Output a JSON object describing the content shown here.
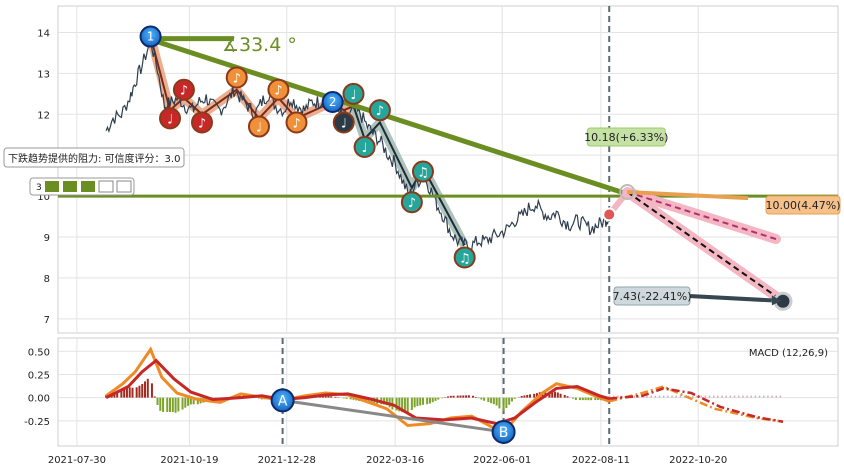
{
  "chart_data": [
    {
      "type": "line",
      "panel": "price",
      "y_ticks": [
        14,
        13,
        12,
        11,
        10,
        9,
        8,
        7
      ],
      "ylim": [
        6.8,
        14.5
      ],
      "grid": true,
      "key_points": [
        {
          "label": "1",
          "date": "2021-09-21",
          "value": 13.9
        },
        {
          "label": "2",
          "date": "2022-01-30",
          "value": 12.3
        }
      ],
      "series": [
        {
          "name": "price",
          "points": [
            [
              "2021-08-20",
              11.6
            ],
            [
              "2021-08-25",
              11.9
            ],
            [
              "2021-08-31",
              12.0
            ],
            [
              "2021-09-06",
              12.4
            ],
            [
              "2021-09-10",
              12.8
            ],
            [
              "2021-09-15",
              13.2
            ],
            [
              "2021-09-21",
              13.8
            ],
            [
              "2021-09-26",
              13.1
            ],
            [
              "2021-10-01",
              12.2
            ],
            [
              "2021-10-06",
              12.3
            ],
            [
              "2021-10-11",
              12.4
            ],
            [
              "2021-10-16",
              12.2
            ],
            [
              "2021-10-21",
              12.1
            ],
            [
              "2021-10-26",
              12.3
            ],
            [
              "2021-10-31",
              12.4
            ],
            [
              "2021-11-05",
              12.2
            ],
            [
              "2021-11-10",
              12.1
            ],
            [
              "2021-11-15",
              12.3
            ],
            [
              "2021-11-20",
              12.6
            ],
            [
              "2021-11-25",
              12.4
            ],
            [
              "2021-11-30",
              12.2
            ],
            [
              "2021-12-05",
              12.0
            ],
            [
              "2021-12-10",
              12.3
            ],
            [
              "2021-12-15",
              12.5
            ],
            [
              "2021-12-20",
              12.2
            ],
            [
              "2021-12-26",
              12.1
            ],
            [
              "2021-12-31",
              12.4
            ],
            [
              "2022-01-05",
              12.2
            ],
            [
              "2022-01-10",
              12.1
            ],
            [
              "2022-01-15",
              12.3
            ],
            [
              "2022-01-20",
              12.3
            ],
            [
              "2022-01-25",
              12.4
            ],
            [
              "2022-01-30",
              12.3
            ],
            [
              "2022-02-04",
              12.0
            ],
            [
              "2022-02-09",
              11.9
            ],
            [
              "2022-02-14",
              12.1
            ],
            [
              "2022-02-19",
              12.0
            ],
            [
              "2022-02-24",
              11.7
            ],
            [
              "2022-03-01",
              11.5
            ],
            [
              "2022-03-06",
              11.3
            ],
            [
              "2022-03-11",
              11.0
            ],
            [
              "2022-03-16",
              10.8
            ],
            [
              "2022-03-21",
              10.4
            ],
            [
              "2022-03-26",
              10.0
            ],
            [
              "2022-03-31",
              10.3
            ],
            [
              "2022-04-05",
              10.5
            ],
            [
              "2022-04-10",
              10.2
            ],
            [
              "2022-04-15",
              9.8
            ],
            [
              "2022-04-20",
              9.5
            ],
            [
              "2022-04-25",
              9.1
            ],
            [
              "2022-04-30",
              8.9
            ],
            [
              "2022-05-05",
              8.8
            ],
            [
              "2022-05-10",
              8.8
            ],
            [
              "2022-05-15",
              8.9
            ],
            [
              "2022-05-20",
              8.9
            ],
            [
              "2022-05-25",
              9.0
            ],
            [
              "2022-05-31",
              9.1
            ],
            [
              "2022-06-05",
              9.2
            ],
            [
              "2022-06-10",
              9.4
            ],
            [
              "2022-06-15",
              9.5
            ],
            [
              "2022-06-20",
              9.7
            ],
            [
              "2022-06-25",
              9.8
            ],
            [
              "2022-06-30",
              9.6
            ],
            [
              "2022-07-05",
              9.5
            ],
            [
              "2022-07-10",
              9.6
            ],
            [
              "2022-07-15",
              9.4
            ],
            [
              "2022-07-20",
              9.3
            ],
            [
              "2022-07-25",
              9.4
            ],
            [
              "2022-07-30",
              9.3
            ],
            [
              "2022-08-04",
              9.2
            ],
            [
              "2022-08-09",
              9.3
            ],
            [
              "2022-08-14",
              9.4
            ],
            [
              "2022-08-17",
              9.5
            ]
          ]
        }
      ],
      "annotations": {
        "angle_label": "∡33.4 °",
        "resistance_label": "下跌趋势提供的阻力: 可信度评分：3.0",
        "score_number": "3",
        "upper_target": {
          "label": "10.18(+6.33%)",
          "date": "2022-08-30",
          "value": 10.1
        },
        "mid_target": {
          "label": "10.00(4.47%)",
          "date": "2022-10-25",
          "value": 9.95
        },
        "lower_target": {
          "label": "7.43(-22.41%)",
          "date": "2022-12-20",
          "value": 7.43
        },
        "support_level": 10.0
      }
    },
    {
      "type": "line",
      "panel": "macd",
      "legend": "MACD (12,26,9)",
      "y_ticks": [
        0.5,
        0.25,
        0.0,
        -0.25
      ],
      "ylim": [
        -0.5,
        0.6
      ],
      "x_ticks": [
        "2021-07-30",
        "2021-10-19",
        "2021-12-28",
        "2022-03-16",
        "2022-06-01",
        "2022-08-11",
        "2022-10-20"
      ],
      "markers": [
        {
          "label": "A",
          "date": "2021-12-25",
          "value": -0.03
        },
        {
          "label": "B",
          "date": "2022-06-02",
          "value": -0.37
        }
      ],
      "series": [
        {
          "name": "macd",
          "points": [
            [
              "2021-08-20",
              0.02
            ],
            [
              "2021-09-01",
              0.15
            ],
            [
              "2021-09-10",
              0.28
            ],
            [
              "2021-09-21",
              0.52
            ],
            [
              "2021-09-29",
              0.22
            ],
            [
              "2021-10-10",
              0.05
            ],
            [
              "2021-10-25",
              -0.02
            ],
            [
              "2021-11-10",
              -0.05
            ],
            [
              "2021-11-25",
              0.04
            ],
            [
              "2021-12-08",
              0.01
            ],
            [
              "2021-12-25",
              -0.03
            ],
            [
              "2022-01-10",
              0.02
            ],
            [
              "2022-01-25",
              0.05
            ],
            [
              "2022-02-10",
              0.03
            ],
            [
              "2022-02-25",
              -0.05
            ],
            [
              "2022-03-10",
              -0.12
            ],
            [
              "2022-03-25",
              -0.3
            ],
            [
              "2022-04-10",
              -0.28
            ],
            [
              "2022-04-25",
              -0.22
            ],
            [
              "2022-05-10",
              -0.2
            ],
            [
              "2022-05-25",
              -0.32
            ],
            [
              "2022-06-02",
              -0.37
            ],
            [
              "2022-06-15",
              -0.15
            ],
            [
              "2022-06-30",
              0.05
            ],
            [
              "2022-07-10",
              0.15
            ],
            [
              "2022-07-25",
              0.1
            ],
            [
              "2022-08-05",
              0.03
            ],
            [
              "2022-08-17",
              -0.04
            ]
          ]
        },
        {
          "name": "signal",
          "points": [
            [
              "2021-08-20",
              0.0
            ],
            [
              "2021-09-05",
              0.12
            ],
            [
              "2021-09-15",
              0.28
            ],
            [
              "2021-09-25",
              0.4
            ],
            [
              "2021-10-08",
              0.2
            ],
            [
              "2021-10-20",
              0.06
            ],
            [
              "2021-11-05",
              -0.02
            ],
            [
              "2021-11-25",
              0.0
            ],
            [
              "2021-12-10",
              0.02
            ],
            [
              "2021-12-25",
              -0.02
            ],
            [
              "2022-01-10",
              0.0
            ],
            [
              "2022-01-25",
              0.03
            ],
            [
              "2022-02-10",
              0.04
            ],
            [
              "2022-02-25",
              -0.01
            ],
            [
              "2022-03-15",
              -0.08
            ],
            [
              "2022-03-31",
              -0.22
            ],
            [
              "2022-04-20",
              -0.24
            ],
            [
              "2022-05-10",
              -0.22
            ],
            [
              "2022-05-28",
              -0.28
            ],
            [
              "2022-06-10",
              -0.22
            ],
            [
              "2022-06-25",
              -0.05
            ],
            [
              "2022-07-10",
              0.1
            ],
            [
              "2022-07-25",
              0.12
            ],
            [
              "2022-08-10",
              0.02
            ],
            [
              "2022-08-17",
              -0.01
            ]
          ]
        }
      ]
    }
  ]
}
